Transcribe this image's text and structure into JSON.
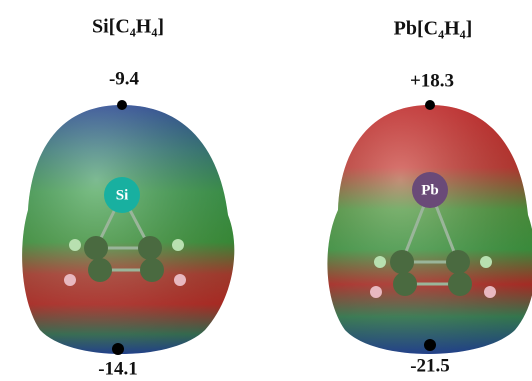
{
  "panels": [
    {
      "title": "Si[C₄H₄]",
      "top_value": "-9.4",
      "bottom_value": "-14.1",
      "atom": "Si"
    },
    {
      "title": "Pb[C₄H₄]",
      "top_value": "+18.3",
      "bottom_value": "-21.5",
      "atom": "Pb"
    }
  ]
}
